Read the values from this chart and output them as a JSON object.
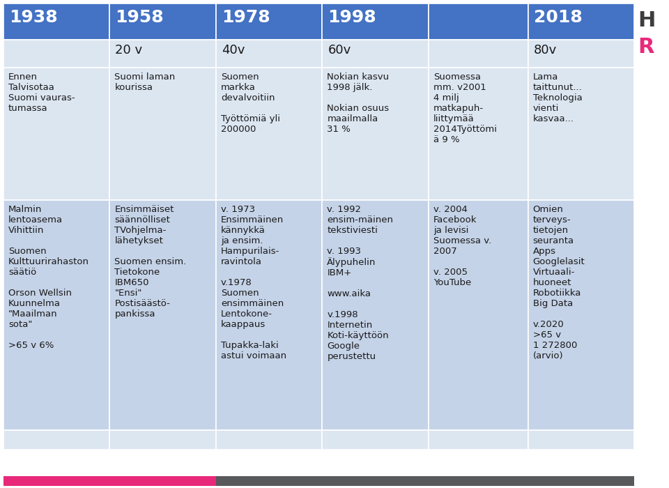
{
  "col_years": [
    "1938",
    "1958",
    "1978",
    "1998",
    "",
    "2018"
  ],
  "col_intervals": [
    "",
    "20 v",
    "40v",
    "60v",
    "",
    "80v"
  ],
  "header_bg": "#4472c4",
  "header_text": "#ffffff",
  "row1_bg": "#dce6f1",
  "row2_bg": "#c5d3e8",
  "footer_bg": "#dce6f1",
  "cells": {
    "row1": [
      "Ennen\nTalvisotaa\nSuomi vauras-\ntumassa",
      "Suomi laman\nkourissa",
      "Suomen\nmarkka\ndevalvoitiin\n\nTyöttömiä yli\n200000",
      "Nokian kasvu\n1998 jälk.\n\nNokian osuus\nmaailmalla\n31 %",
      "Suomessa\nmm. v2001\n4 milj\nmatkapuh-\nliittymää\n2014Työttömi\nä 9 %",
      "Lama\ntaittunut...\nTeknologia\nvienti\nkasvaa..."
    ],
    "row2": [
      "Malmin\nlentoasema\nVihittiin\n\nSuomen\nKulttuurirahaston\nsäätiö\n\nOrson Wellsin\nKuunnelma\n\"Maailman\nsota\"\n\n>65 v 6%",
      "Ensimmäiset\nsäännölliset\nTVohjelma-\nlähetykset\n\nSuomen ensim.\nTietokone\nIBM650\n\"Ensi\"\nPostisäästö-\npankissa",
      "v. 1973\nEnsimmäinen\nkännykkä\nja ensim.\nHampurilais-\nravintola\n\nv.1978\nSuomen\nensimmäinen\nLentokone-\nkaappaus\n\nTupakka-laki\nastui voimaan",
      "v. 1992\nensim-mäinen\ntekstiviesti\n\nv. 1993\nÄlypuhelin\nIBM+\n\nwww.aika\n\nv.1998\nInternetin\nKoti-käyttöön\nGoogle\nperustettu",
      "v. 2004\nFacebook\nja levisi\nSuomessa v.\n2007\n\nv. 2005\nYouTube",
      "Omien\nterveys-\ntietojen\nseuranta\nApps\nGooglelasit\nVirtuaali-\nhuoneet\nRobotiikka\nBig Data\n\nv.2020\n>65 v\n1 272800\n(arvio)"
    ]
  },
  "bottom_pink": "#e8297a",
  "bottom_grey": "#58595b",
  "logo_h_color": "#3d3d3d",
  "logo_r_color": "#e8297a"
}
